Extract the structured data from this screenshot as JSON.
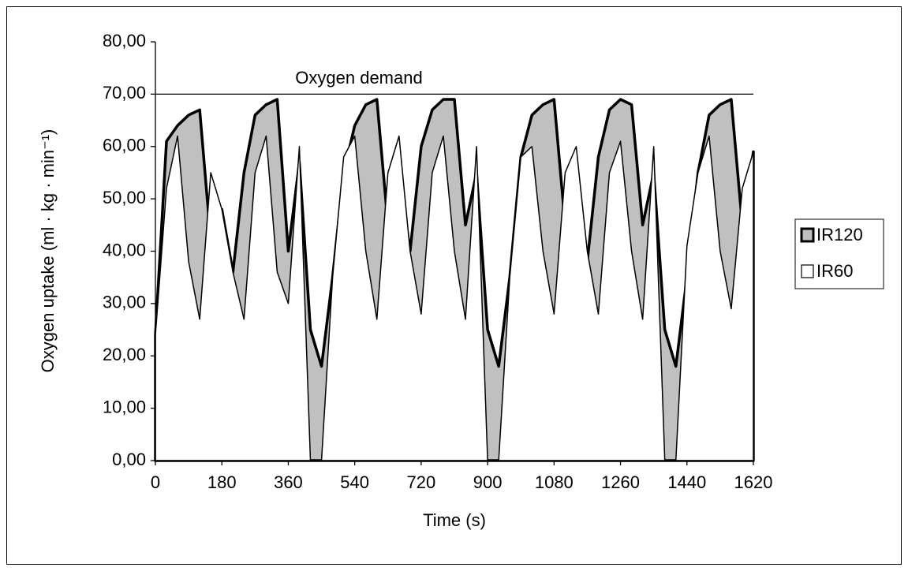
{
  "chart_data": {
    "type": "area",
    "x_label": "Time (s)",
    "y_label": "Oxygen uptake (ml · kg · min⁻¹)",
    "x": [
      0,
      30,
      60,
      90,
      120,
      150,
      180,
      210,
      240,
      270,
      300,
      330,
      360,
      390,
      420,
      450,
      480,
      510,
      540,
      570,
      600,
      630,
      660,
      690,
      720,
      750,
      780,
      810,
      840,
      870,
      900,
      930,
      960,
      990,
      1020,
      1050,
      1080,
      1110,
      1140,
      1170,
      1200,
      1230,
      1260,
      1290,
      1320,
      1350,
      1380,
      1410,
      1440,
      1470,
      1500,
      1530,
      1560,
      1590,
      1620
    ],
    "series": [
      {
        "name": "IR120",
        "color": "#c0c0c0",
        "values": [
          24,
          61,
          64,
          66,
          67,
          42,
          48,
          36,
          55,
          66,
          68,
          69,
          40,
          57,
          25,
          18,
          35,
          55,
          64,
          68,
          69,
          45,
          55,
          40,
          60,
          67,
          69,
          69,
          45,
          55,
          25,
          18,
          35,
          58,
          66,
          68,
          69,
          45,
          55,
          38,
          58,
          67,
          69,
          68,
          45,
          55,
          25,
          18,
          35,
          55,
          66,
          68,
          69,
          45,
          59
        ]
      },
      {
        "name": "IR60",
        "color": "#ffffff",
        "values": [
          24,
          52,
          62,
          38,
          27,
          55,
          48,
          36,
          27,
          55,
          62,
          36,
          30,
          60,
          0,
          0,
          35,
          58,
          62,
          40,
          27,
          55,
          62,
          40,
          28,
          55,
          62,
          40,
          27,
          60,
          0,
          0,
          35,
          58,
          60,
          40,
          28,
          55,
          60,
          40,
          28,
          55,
          61,
          40,
          27,
          60,
          0,
          0,
          41,
          55,
          62,
          40,
          29,
          52,
          59
        ]
      }
    ],
    "xlim": [
      0,
      1620
    ],
    "xticks": [
      0,
      180,
      360,
      540,
      720,
      900,
      1080,
      1260,
      1440,
      1620
    ],
    "ylim": [
      0,
      80
    ],
    "yticks": [
      {
        "value": 0,
        "label": "0,00"
      },
      {
        "value": 10,
        "label": "10,00"
      },
      {
        "value": 20,
        "label": "20,00"
      },
      {
        "value": 30,
        "label": "30,00"
      },
      {
        "value": 40,
        "label": "40,00"
      },
      {
        "value": 50,
        "label": "50,00"
      },
      {
        "value": 60,
        "label": "60,00"
      },
      {
        "value": 70,
        "label": "70,00"
      },
      {
        "value": 80,
        "label": "80,00"
      }
    ],
    "reference_lines": [
      {
        "value": 70,
        "label": "Oxygen demand"
      }
    ],
    "legend": "right"
  }
}
